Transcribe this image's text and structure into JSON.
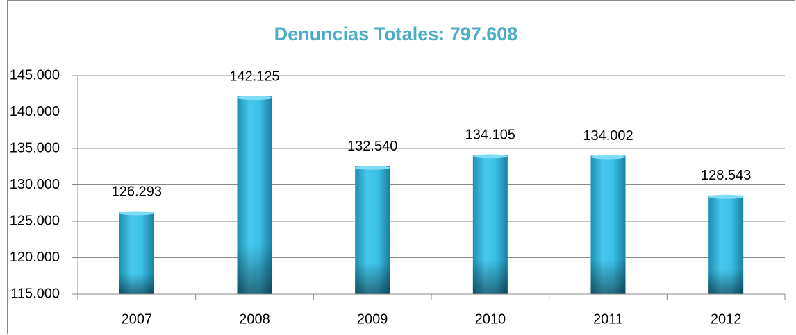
{
  "chart_data": {
    "type": "bar",
    "title": "Denuncias Totales: 797.608",
    "categories": [
      "2007",
      "2008",
      "2009",
      "2010",
      "2011",
      "2012"
    ],
    "values": [
      126293,
      142125,
      132540,
      134105,
      134002,
      128543
    ],
    "value_labels": [
      "126.293",
      "142.125",
      "132.540",
      "134.105",
      "134.002",
      "128.543"
    ],
    "color": "#31b6dc",
    "ylim": [
      115000,
      145000
    ],
    "yticks": [
      {
        "value": 115000,
        "label": "115.000"
      },
      {
        "value": 120000,
        "label": "120.000"
      },
      {
        "value": 125000,
        "label": "125.000"
      },
      {
        "value": 130000,
        "label": "130.000"
      },
      {
        "value": 135000,
        "label": "135.000"
      },
      {
        "value": 140000,
        "label": "140.000"
      },
      {
        "value": 145000,
        "label": "145.000"
      }
    ],
    "grid": true
  }
}
